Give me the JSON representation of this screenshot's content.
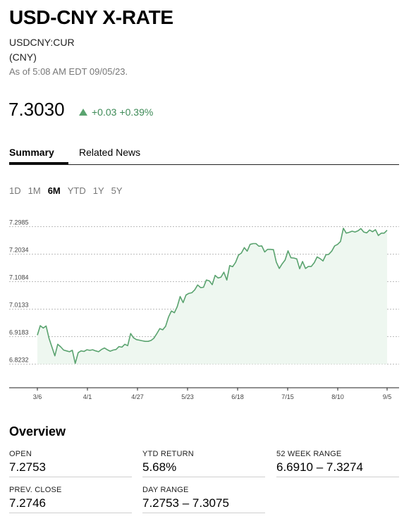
{
  "header": {
    "title": "USD-CNY X-RATE",
    "ticker": "USDCNY:CUR",
    "currency": "(CNY)",
    "as_of": "As of 5:08 AM EDT 09/05/23."
  },
  "quote": {
    "price": "7.3030",
    "change": "+0.03",
    "change_pct": "+0.39%",
    "direction": "up",
    "up_color": "#3f8b58"
  },
  "tabs": {
    "summary": "Summary",
    "related_news": "Related News"
  },
  "ranges": {
    "items": [
      "1D",
      "1M",
      "6M",
      "YTD",
      "1Y",
      "5Y"
    ],
    "selected": "6M"
  },
  "chart_data": {
    "type": "area",
    "y_ticks": [
      "7.2985",
      "7.2034",
      "7.1084",
      "7.0133",
      "6.9183",
      "6.8232"
    ],
    "x_ticks": [
      "3/6",
      "4/1",
      "4/27",
      "5/23",
      "6/18",
      "7/15",
      "8/10",
      "9/5"
    ],
    "ylim": [
      6.8232,
      7.2985
    ],
    "grid": true,
    "line_color": "#5aa36f",
    "fill_color": "#eef7f0",
    "series": [
      {
        "values": [
          6.9235,
          6.956,
          6.948,
          6.955,
          6.913,
          6.882,
          6.852,
          6.892,
          6.883,
          6.872,
          6.869,
          6.866,
          6.871,
          6.826,
          6.863,
          6.869,
          6.867,
          6.873,
          6.871,
          6.873,
          6.869,
          6.866,
          6.874,
          6.879,
          6.873,
          6.868,
          6.872,
          6.874,
          6.884,
          6.882,
          6.892,
          6.887,
          6.929,
          6.914,
          6.908,
          6.906,
          6.904,
          6.902,
          6.902,
          6.905,
          6.913,
          6.929,
          6.946,
          6.942,
          6.954,
          6.986,
          7.007,
          7.001,
          7.022,
          7.057,
          7.036,
          7.062,
          7.068,
          7.07,
          7.08,
          7.097,
          7.088,
          7.089,
          7.114,
          7.111,
          7.098,
          7.13,
          7.121,
          7.124,
          7.141,
          7.114,
          7.164,
          7.16,
          7.175,
          7.2,
          7.207,
          7.226,
          7.214,
          7.237,
          7.24,
          7.24,
          7.231,
          7.232,
          7.211,
          7.22,
          7.22,
          7.219,
          7.176,
          7.154,
          7.17,
          7.183,
          7.215,
          7.191,
          7.19,
          7.187,
          7.153,
          7.178,
          7.154,
          7.161,
          7.161,
          7.174,
          7.194,
          7.188,
          7.18,
          7.201,
          7.203,
          7.214,
          7.232,
          7.237,
          7.247,
          7.293,
          7.276,
          7.279,
          7.283,
          7.28,
          7.284,
          7.292,
          7.28,
          7.277,
          7.287,
          7.281,
          7.288,
          7.268,
          7.276,
          7.276,
          7.286
        ]
      }
    ]
  },
  "overview": {
    "title": "Overview",
    "fields": [
      {
        "label": "OPEN",
        "value": "7.2753"
      },
      {
        "label": "YTD RETURN",
        "value": "5.68%"
      },
      {
        "label": "52 WEEK RANGE",
        "value": "6.6910 – 7.3274"
      },
      {
        "label": "PREV. CLOSE",
        "value": "7.2746"
      },
      {
        "label": "DAY RANGE",
        "value": "7.2753 – 7.3075"
      }
    ]
  }
}
